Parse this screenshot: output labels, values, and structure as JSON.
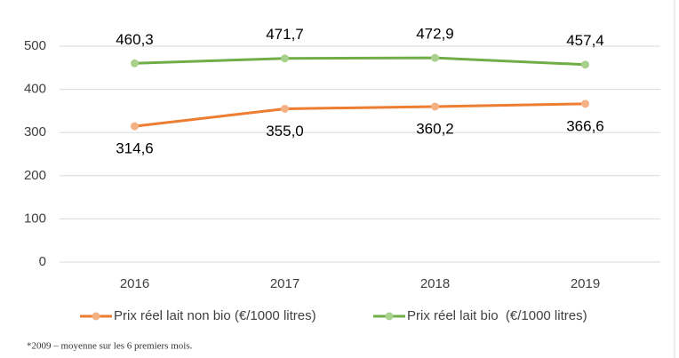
{
  "chart_data": {
    "type": "line",
    "categories": [
      "2016",
      "2017",
      "2018",
      "2019"
    ],
    "series": [
      {
        "name": "Prix réel lait non bio (€/1000 litres)",
        "color": "#ed7d31",
        "marker_color": "#f4b183",
        "values": [
          314.6,
          355.0,
          360.2,
          366.6
        ],
        "value_labels": [
          "314,6",
          "355,0",
          "360,2",
          "366,6"
        ]
      },
      {
        "name": "Prix réel lait bio  (€/1000 litres)",
        "color": "#70ad47",
        "marker_color": "#a9d18e",
        "values": [
          460.3,
          471.7,
          472.9,
          457.4
        ],
        "value_labels": [
          "460,3",
          "471,7",
          "472,9",
          "457,4"
        ]
      }
    ],
    "ylim": [
      0,
      500
    ],
    "yticks": [
      0,
      100,
      200,
      300,
      400,
      500
    ],
    "grid": true,
    "note": "*2009 – moyenne sur les 6 premiers mois."
  }
}
